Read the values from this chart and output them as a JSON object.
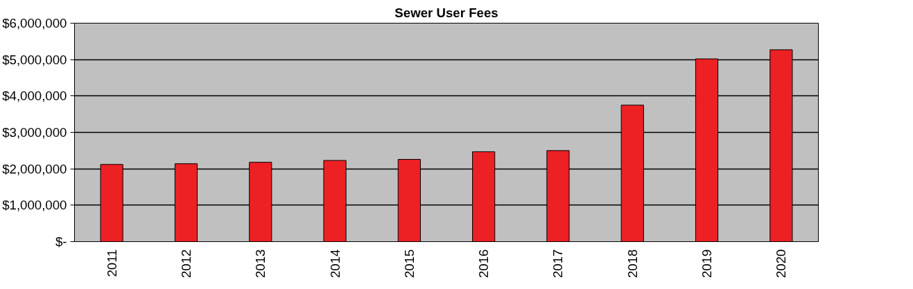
{
  "chart_data": {
    "type": "bar",
    "title": "Sewer User Fees",
    "categories": [
      "2011",
      "2012",
      "2013",
      "2014",
      "2015",
      "2016",
      "2017",
      "2018",
      "2019",
      "2020"
    ],
    "values": [
      2120000,
      2140000,
      2180000,
      2230000,
      2260000,
      2470000,
      2500000,
      3750000,
      5020000,
      5270000
    ],
    "color": "#ed2024",
    "ylim": [
      0,
      6000000
    ],
    "yticks": [
      {
        "value": 0,
        "label": "$-"
      },
      {
        "value": 1000000,
        "label": "$1,000,000"
      },
      {
        "value": 2000000,
        "label": "$2,000,000"
      },
      {
        "value": 3000000,
        "label": "$3,000,000"
      },
      {
        "value": 4000000,
        "label": "$4,000,000"
      },
      {
        "value": 5000000,
        "label": "$5,000,000"
      },
      {
        "value": 6000000,
        "label": "$6,000,000"
      }
    ],
    "grid": "y"
  }
}
